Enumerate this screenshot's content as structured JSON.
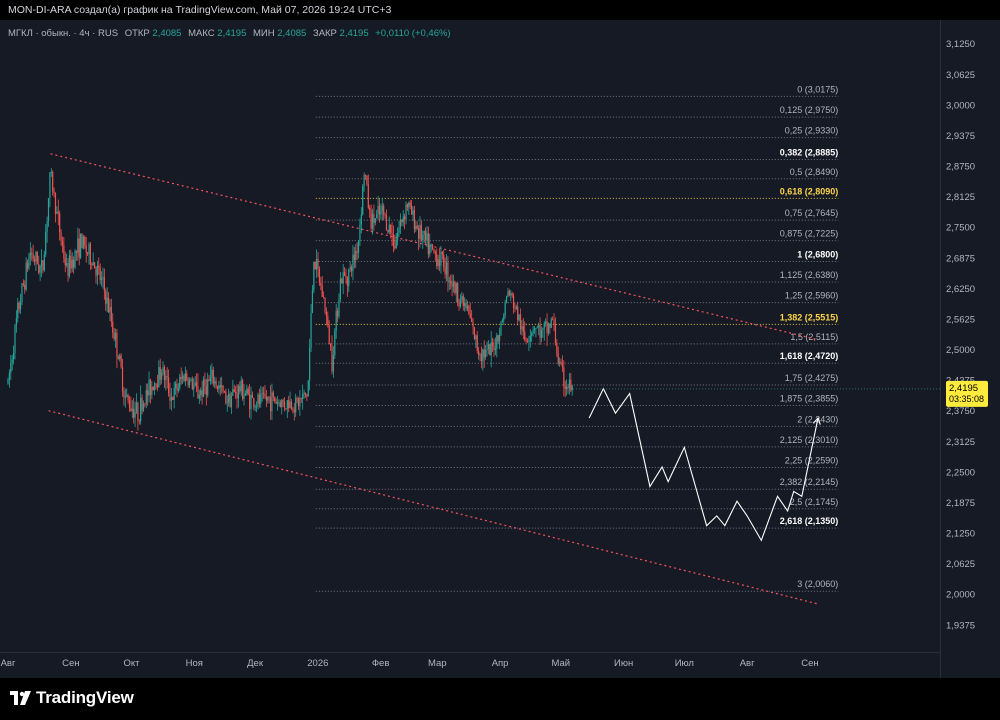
{
  "header": {
    "caption": "MON-DI-ARA создал(а) график на TradingView.com, Май 07, 2026 19:24 UTC+3"
  },
  "legend": {
    "symbol": "МГКЛ · обыкн. · 4ч · RUS",
    "open_label": "ОТКР",
    "open_value": "2,4085",
    "high_label": "МАКС",
    "high_value": "2,4195",
    "low_label": "МИН",
    "low_value": "2,4085",
    "close_label": "ЗАКР",
    "close_value": "2,4195",
    "change": "+0,0110 (+0,46%)"
  },
  "price_tag": {
    "price": "2,4195",
    "countdown": "03:35:08"
  },
  "footer": {
    "brand": "TradingView"
  },
  "colors": {
    "background": "#161a25",
    "up": "#26a69a",
    "down": "#ef5350",
    "fib_gold": "#ffd54a",
    "trend": "#f7525f",
    "projection": "#ffffff",
    "text": "#b2b5be"
  },
  "chart_data": {
    "type": "candlestick",
    "timeframe": "4h",
    "ylim": [
      1.89,
      3.15
    ],
    "y_ticks": [
      {
        "v": 3.125,
        "label": "3,1250"
      },
      {
        "v": 3.0625,
        "label": "3,0625"
      },
      {
        "v": 3.0,
        "label": "3,0000"
      },
      {
        "v": 2.9375,
        "label": "2,9375"
      },
      {
        "v": 2.875,
        "label": "2,8750"
      },
      {
        "v": 2.8125,
        "label": "2,8125"
      },
      {
        "v": 2.75,
        "label": "2,7500"
      },
      {
        "v": 2.6875,
        "label": "2,6875"
      },
      {
        "v": 2.625,
        "label": "2,6250"
      },
      {
        "v": 2.5625,
        "label": "2,5625"
      },
      {
        "v": 2.5,
        "label": "2,5000"
      },
      {
        "v": 2.4375,
        "label": "2,4375"
      },
      {
        "v": 2.375,
        "label": "2,3750"
      },
      {
        "v": 2.3125,
        "label": "2,3125"
      },
      {
        "v": 2.25,
        "label": "2,2500"
      },
      {
        "v": 2.1875,
        "label": "2,1875"
      },
      {
        "v": 2.125,
        "label": "2,1250"
      },
      {
        "v": 2.0625,
        "label": "2,0625"
      },
      {
        "v": 2.0,
        "label": "2,0000"
      },
      {
        "v": 1.9375,
        "label": "1,9375"
      }
    ],
    "x_ticks": [
      {
        "d": "2025-08-01",
        "label": "Авг"
      },
      {
        "d": "2025-09-01",
        "label": "Сен"
      },
      {
        "d": "2025-10-01",
        "label": "Окт"
      },
      {
        "d": "2025-11-01",
        "label": "Ноя"
      },
      {
        "d": "2025-12-01",
        "label": "Дек"
      },
      {
        "d": "2026-01-01",
        "label": "2026"
      },
      {
        "d": "2026-02-01",
        "label": "Фев"
      },
      {
        "d": "2026-03-01",
        "label": "Мар"
      },
      {
        "d": "2026-04-01",
        "label": "Апр"
      },
      {
        "d": "2026-05-01",
        "label": "Май"
      },
      {
        "d": "2026-06-01",
        "label": "Июн"
      },
      {
        "d": "2026-07-01",
        "label": "Июл"
      },
      {
        "d": "2026-08-01",
        "label": "Авг"
      },
      {
        "d": "2026-09-01",
        "label": "Сен"
      }
    ],
    "x_range": [
      "2025-08-01",
      "2026-09-05"
    ],
    "price_path": [
      [
        "2025-08-01",
        2.43
      ],
      [
        "2025-08-06",
        2.58
      ],
      [
        "2025-08-12",
        2.7
      ],
      [
        "2025-08-18",
        2.66
      ],
      [
        "2025-08-22",
        2.86
      ],
      [
        "2025-08-25",
        2.78
      ],
      [
        "2025-08-30",
        2.66
      ],
      [
        "2025-09-06",
        2.72
      ],
      [
        "2025-09-12",
        2.68
      ],
      [
        "2025-09-17",
        2.63
      ],
      [
        "2025-09-21",
        2.56
      ],
      [
        "2025-09-24",
        2.5
      ],
      [
        "2025-09-28",
        2.4
      ],
      [
        "2025-10-04",
        2.37
      ],
      [
        "2025-10-10",
        2.42
      ],
      [
        "2025-10-16",
        2.46
      ],
      [
        "2025-10-21",
        2.4
      ],
      [
        "2025-10-27",
        2.45
      ],
      [
        "2025-11-03",
        2.41
      ],
      [
        "2025-11-10",
        2.44
      ],
      [
        "2025-11-17",
        2.4
      ],
      [
        "2025-11-24",
        2.42
      ],
      [
        "2025-12-01",
        2.39
      ],
      [
        "2025-12-08",
        2.4
      ],
      [
        "2025-12-15",
        2.39
      ],
      [
        "2025-12-22",
        2.39
      ],
      [
        "2025-12-27",
        2.41
      ],
      [
        "2025-12-30",
        2.69
      ],
      [
        "2026-01-04",
        2.6
      ],
      [
        "2026-01-08",
        2.48
      ],
      [
        "2026-01-12",
        2.64
      ],
      [
        "2026-01-17",
        2.66
      ],
      [
        "2026-01-21",
        2.72
      ],
      [
        "2026-01-24",
        2.87
      ],
      [
        "2026-01-27",
        2.76
      ],
      [
        "2026-02-02",
        2.78
      ],
      [
        "2026-02-08",
        2.72
      ],
      [
        "2026-02-14",
        2.8
      ],
      [
        "2026-02-20",
        2.74
      ],
      [
        "2026-02-26",
        2.7
      ],
      [
        "2026-03-04",
        2.68
      ],
      [
        "2026-03-10",
        2.62
      ],
      [
        "2026-03-16",
        2.58
      ],
      [
        "2026-03-21",
        2.5
      ],
      [
        "2026-03-27",
        2.49
      ],
      [
        "2026-04-01",
        2.54
      ],
      [
        "2026-04-05",
        2.62
      ],
      [
        "2026-04-09",
        2.58
      ],
      [
        "2026-04-13",
        2.52
      ],
      [
        "2026-04-18",
        2.55
      ],
      [
        "2026-04-22",
        2.53
      ],
      [
        "2026-04-27",
        2.56
      ],
      [
        "2026-04-30",
        2.47
      ],
      [
        "2026-05-03",
        2.43
      ],
      [
        "2026-05-07",
        2.42
      ]
    ],
    "projection": [
      [
        "2026-05-15",
        2.36
      ],
      [
        "2026-05-22",
        2.42
      ],
      [
        "2026-05-28",
        2.37
      ],
      [
        "2026-06-04",
        2.41
      ],
      [
        "2026-06-14",
        2.22
      ],
      [
        "2026-06-20",
        2.26
      ],
      [
        "2026-06-23",
        2.23
      ],
      [
        "2026-07-01",
        2.3
      ],
      [
        "2026-07-12",
        2.14
      ],
      [
        "2026-07-17",
        2.16
      ],
      [
        "2026-07-21",
        2.14
      ],
      [
        "2026-07-27",
        2.19
      ],
      [
        "2026-08-01",
        2.16
      ],
      [
        "2026-08-08",
        2.11
      ],
      [
        "2026-08-16",
        2.2
      ],
      [
        "2026-08-21",
        2.17
      ],
      [
        "2026-08-24",
        2.21
      ],
      [
        "2026-08-28",
        2.2
      ],
      [
        "2026-09-05",
        2.36
      ]
    ],
    "fib_levels": [
      {
        "label": "0 (3,0175)",
        "value": 3.0175,
        "style": "normal"
      },
      {
        "label": "0,125 (2,9750)",
        "value": 2.975,
        "style": "normal"
      },
      {
        "label": "0,25 (2,9330)",
        "value": 2.933,
        "style": "normal"
      },
      {
        "label": "0,382 (2,8885)",
        "value": 2.8885,
        "style": "bold"
      },
      {
        "label": "0,5 (2,8490)",
        "value": 2.849,
        "style": "normal"
      },
      {
        "label": "0,618 (2,8090)",
        "value": 2.809,
        "style": "gold"
      },
      {
        "label": "0,75 (2,7645)",
        "value": 2.7645,
        "style": "normal"
      },
      {
        "label": "0,875 (2,7225)",
        "value": 2.7225,
        "style": "normal"
      },
      {
        "label": "1 (2,6800)",
        "value": 2.68,
        "style": "bold"
      },
      {
        "label": "1,125 (2,6380)",
        "value": 2.638,
        "style": "normal"
      },
      {
        "label": "1,25 (2,5960)",
        "value": 2.596,
        "style": "normal"
      },
      {
        "label": "1,382 (2,5515)",
        "value": 2.5515,
        "style": "gold"
      },
      {
        "label": "1,5 (2,5115)",
        "value": 2.5115,
        "style": "normal"
      },
      {
        "label": "1,618 (2,4720)",
        "value": 2.472,
        "style": "bold"
      },
      {
        "label": "1,75 (2,4275)",
        "value": 2.4275,
        "style": "normal"
      },
      {
        "label": "1,875 (2,3855)",
        "value": 2.3855,
        "style": "normal"
      },
      {
        "label": "2 (2,3430)",
        "value": 2.343,
        "style": "normal"
      },
      {
        "label": "2,125 (2,3010)",
        "value": 2.301,
        "style": "normal"
      },
      {
        "label": "2,25 (2,2590)",
        "value": 2.259,
        "style": "normal"
      },
      {
        "label": "2,382 (2,2145)",
        "value": 2.2145,
        "style": "normal"
      },
      {
        "label": "2,5 (2,1745)",
        "value": 2.1745,
        "style": "normal"
      },
      {
        "label": "2,618 (2,1350)",
        "value": 2.135,
        "style": "bold"
      },
      {
        "label": "3 (2,0060)",
        "value": 2.006,
        "style": "normal"
      }
    ],
    "fib_span": [
      "2025-12-31",
      "2026-09-15"
    ],
    "trend_lines": [
      {
        "name": "upper",
        "from": [
          "2025-08-22",
          2.9
        ],
        "to": [
          "2026-09-05",
          2.52
        ]
      },
      {
        "name": "lower",
        "from": [
          "2025-08-21",
          2.375
        ],
        "to": [
          "2026-09-05",
          1.98
        ]
      }
    ]
  }
}
